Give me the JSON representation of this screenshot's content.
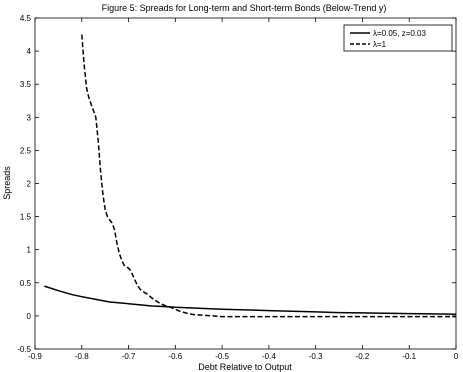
{
  "chart_data": {
    "type": "line",
    "title": "Figure 5: Spreads for Long-term and Short-term Bonds (Below-Trend y)",
    "xlabel": "Debt Relative to Output",
    "ylabel": "Spreads",
    "xlim": [
      -0.9,
      0
    ],
    "ylim": [
      -0.5,
      4.5
    ],
    "xticks": [
      "-0.9",
      "-0.8",
      "-0.7",
      "-0.6",
      "-0.5",
      "-0.4",
      "-0.3",
      "-0.2",
      "-0.1",
      "0"
    ],
    "yticks": [
      "-0.5",
      "0",
      "0.5",
      "1",
      "1.5",
      "2",
      "2.5",
      "3",
      "3.5",
      "4",
      "4.5"
    ],
    "grid": false,
    "legend_position": "top-right",
    "series": [
      {
        "name": "λ=0.05, z=0.03",
        "style": "solid",
        "color": "#000000",
        "x": [
          -0.88,
          -0.85,
          -0.82,
          -0.8,
          -0.77,
          -0.74,
          -0.71,
          -0.68,
          -0.65,
          -0.62,
          -0.6,
          -0.55,
          -0.5,
          -0.45,
          -0.4,
          -0.35,
          -0.3,
          -0.25,
          -0.2,
          -0.15,
          -0.1,
          -0.05,
          0
        ],
        "y": [
          0.45,
          0.38,
          0.32,
          0.29,
          0.25,
          0.21,
          0.19,
          0.17,
          0.15,
          0.14,
          0.13,
          0.115,
          0.1,
          0.09,
          0.08,
          0.07,
          0.06,
          0.05,
          0.045,
          0.04,
          0.035,
          0.03,
          0.025
        ]
      },
      {
        "name": "λ=1",
        "style": "dashed",
        "color": "#000000",
        "x": [
          -0.8,
          -0.795,
          -0.79,
          -0.785,
          -0.78,
          -0.775,
          -0.77,
          -0.765,
          -0.76,
          -0.755,
          -0.75,
          -0.745,
          -0.74,
          -0.735,
          -0.73,
          -0.725,
          -0.72,
          -0.715,
          -0.71,
          -0.705,
          -0.7,
          -0.695,
          -0.69,
          -0.685,
          -0.68,
          -0.675,
          -0.67,
          -0.665,
          -0.66,
          -0.655,
          -0.65,
          -0.64,
          -0.63,
          -0.62,
          -0.61,
          -0.6,
          -0.59,
          -0.58,
          -0.57,
          -0.56,
          -0.54,
          -0.52,
          -0.5,
          -0.45,
          -0.4,
          -0.3,
          -0.2,
          -0.1,
          0
        ],
        "y": [
          4.25,
          3.8,
          3.45,
          3.3,
          3.2,
          3.1,
          3.0,
          2.65,
          2.2,
          1.85,
          1.6,
          1.5,
          1.45,
          1.4,
          1.3,
          1.1,
          0.95,
          0.85,
          0.77,
          0.74,
          0.72,
          0.68,
          0.6,
          0.52,
          0.45,
          0.4,
          0.37,
          0.35,
          0.33,
          0.3,
          0.27,
          0.22,
          0.18,
          0.15,
          0.13,
          0.1,
          0.07,
          0.05,
          0.03,
          0.02,
          0.01,
          0.0,
          -0.01,
          -0.01,
          -0.01,
          -0.01,
          -0.01,
          -0.01,
          -0.01
        ]
      }
    ]
  }
}
